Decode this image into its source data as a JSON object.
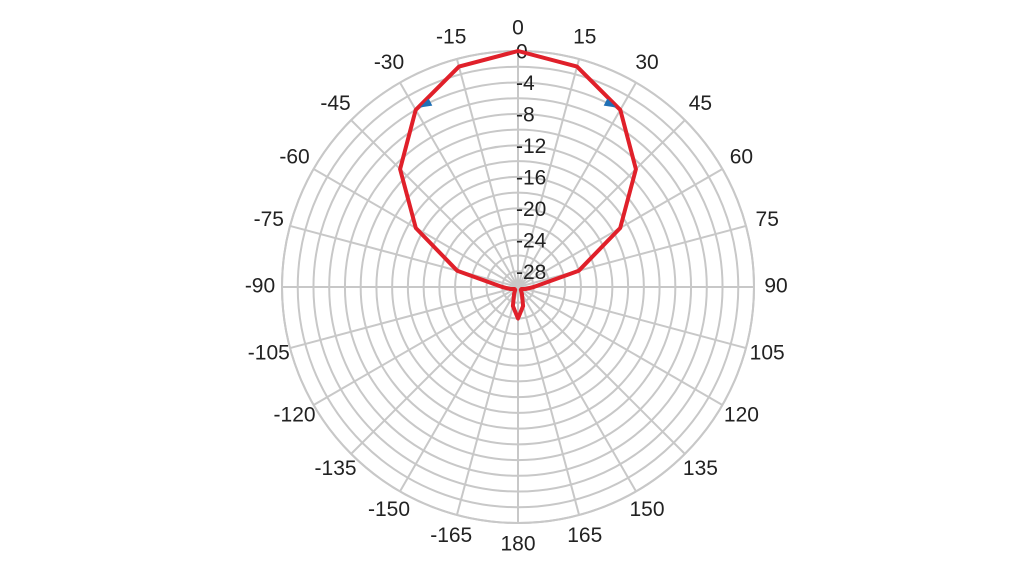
{
  "chart_data": {
    "type": "polar",
    "theta": [
      -165,
      -150,
      -135,
      -120,
      -105,
      -90,
      -75,
      -60,
      -45,
      -30,
      -15,
      0,
      15,
      30,
      45,
      60,
      75,
      90,
      105,
      120,
      135,
      150,
      165,
      180
    ],
    "series": [
      {
        "color": "#e0202a",
        "values": [
          -27.5,
          -29,
          -29.5,
          -29.5,
          -29,
          -28,
          -22,
          -15,
          -8.8,
          -4,
          -1,
          0,
          -1,
          -4,
          -8.8,
          -15,
          -22,
          -28,
          -29,
          -29.5,
          -29.5,
          -29,
          -27.5,
          -26
        ]
      }
    ],
    "markers": {
      "color": "#1f6fb5",
      "theta": [
        -27,
        27
      ],
      "values": [
        -4,
        -4
      ]
    },
    "rlim": [
      -30,
      0
    ],
    "rticks": [
      0,
      -4,
      -8,
      -12,
      -16,
      -20,
      -24,
      -28
    ],
    "rminorticks": [
      -2,
      -6,
      -10,
      -14,
      -18,
      -22,
      -26
    ],
    "thetaticks": [
      0,
      15,
      30,
      45,
      60,
      75,
      90,
      105,
      120,
      135,
      150,
      165,
      180,
      -165,
      -150,
      -135,
      -120,
      -105,
      -90,
      -75,
      -60,
      -45,
      -30,
      -15
    ],
    "grid": true
  }
}
